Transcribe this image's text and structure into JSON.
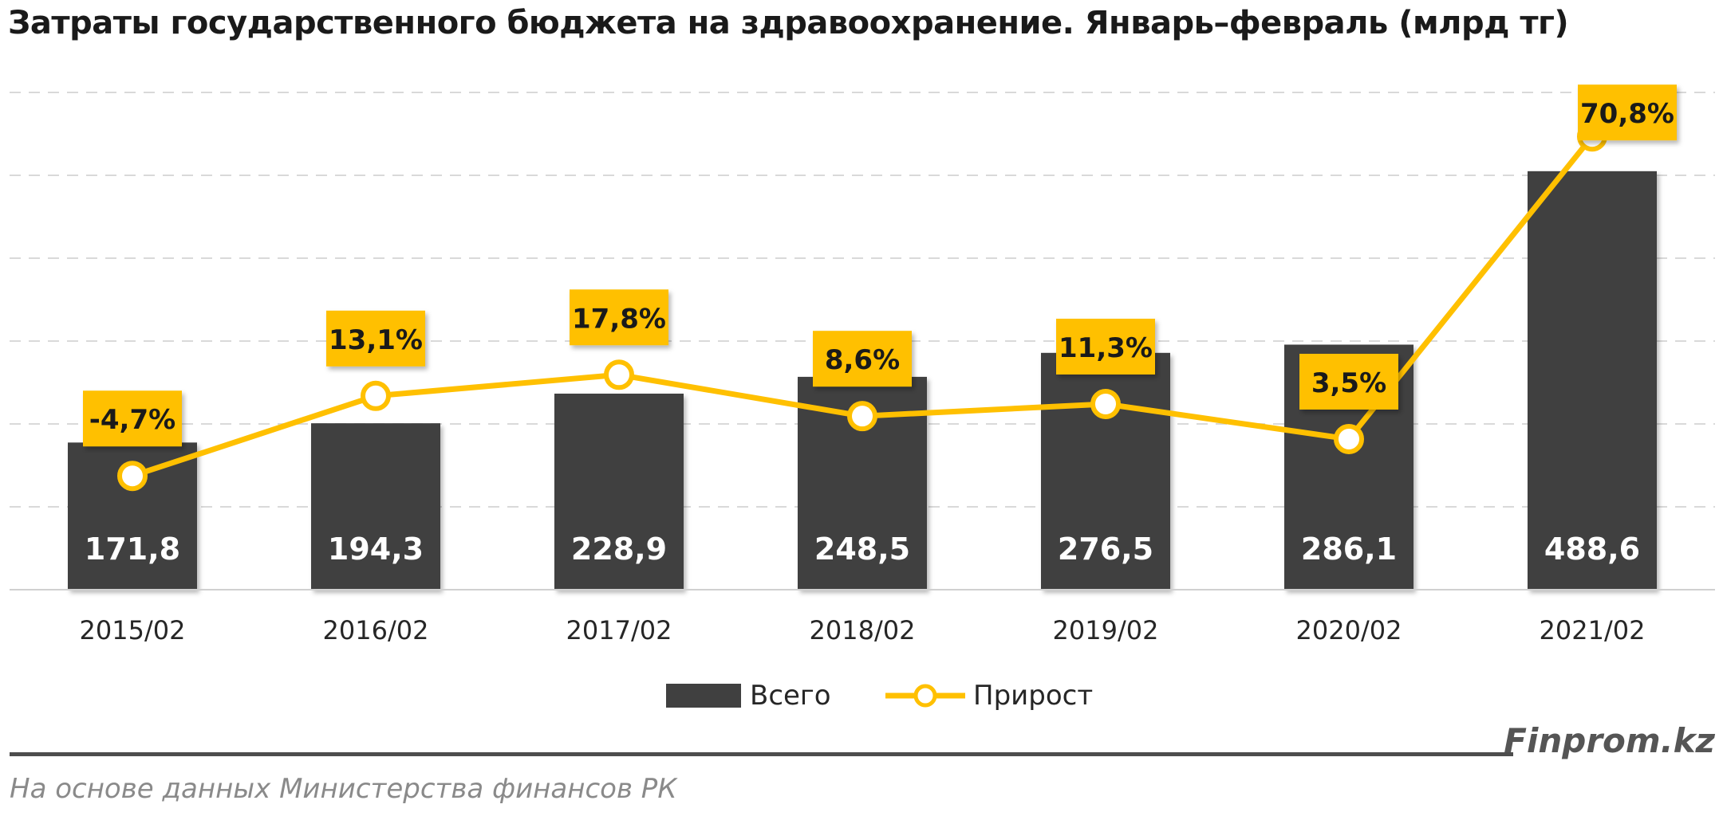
{
  "header": {
    "title": "Затраты государственного бюджета на здравоохранение. Январь–февраль (млрд тг)"
  },
  "chart_data": {
    "type": "bar",
    "categories": [
      "2015/02",
      "2016/02",
      "2017/02",
      "2018/02",
      "2019/02",
      "2020/02",
      "2021/02"
    ],
    "series": [
      {
        "name": "Всего",
        "type": "bar",
        "values": [
          171.8,
          194.3,
          228.9,
          248.5,
          276.5,
          286.1,
          488.6
        ],
        "labels": [
          "171,8",
          "194,3",
          "228,9",
          "248,5",
          "276,5",
          "286,1",
          "488,6"
        ],
        "color": "#404040"
      },
      {
        "name": "Прирост",
        "type": "line",
        "values": [
          -4.7,
          13.1,
          17.8,
          8.6,
          11.3,
          3.5,
          70.8
        ],
        "labels": [
          "-4,7%",
          "13,1%",
          "17,8%",
          "8,6%",
          "11,3%",
          "3,5%",
          "70,8%"
        ],
        "color": "#FFC000"
      }
    ],
    "bar_axis_max": 588,
    "line_axis_range": [
      -30,
      82
    ],
    "grid": true,
    "legend_position": "bottom"
  },
  "footer": {
    "brand": "Finprom.kz",
    "source": "На основе данных Министерства финансов РК"
  }
}
